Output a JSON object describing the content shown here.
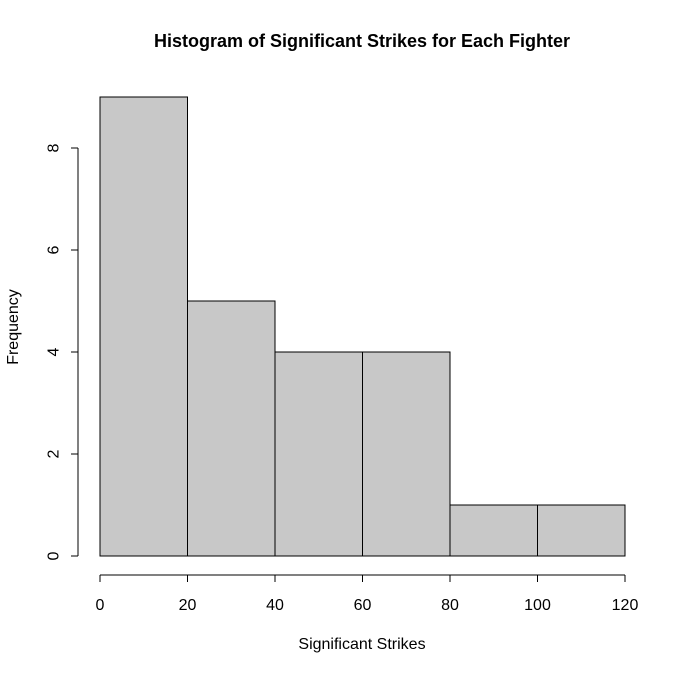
{
  "chart_data": {
    "type": "bar",
    "title": "Histogram of Significant Strikes for Each Fighter",
    "xlabel": "Significant Strikes",
    "ylabel": "Frequency",
    "bins": [
      {
        "start": 0,
        "end": 20,
        "value": 9
      },
      {
        "start": 20,
        "end": 40,
        "value": 5
      },
      {
        "start": 40,
        "end": 60,
        "value": 4
      },
      {
        "start": 60,
        "end": 80,
        "value": 4
      },
      {
        "start": 80,
        "end": 100,
        "value": 1
      },
      {
        "start": 100,
        "end": 120,
        "value": 1
      }
    ],
    "xlim": [
      0,
      120
    ],
    "ylim": [
      0,
      9
    ],
    "x_ticks": [
      "0",
      "20",
      "40",
      "60",
      "80",
      "100",
      "120"
    ],
    "y_ticks": [
      "0",
      "2",
      "4",
      "6",
      "8"
    ],
    "grid": false,
    "colors": {
      "bar_fill": "#c8c8c8",
      "bar_stroke": "#000000"
    }
  }
}
